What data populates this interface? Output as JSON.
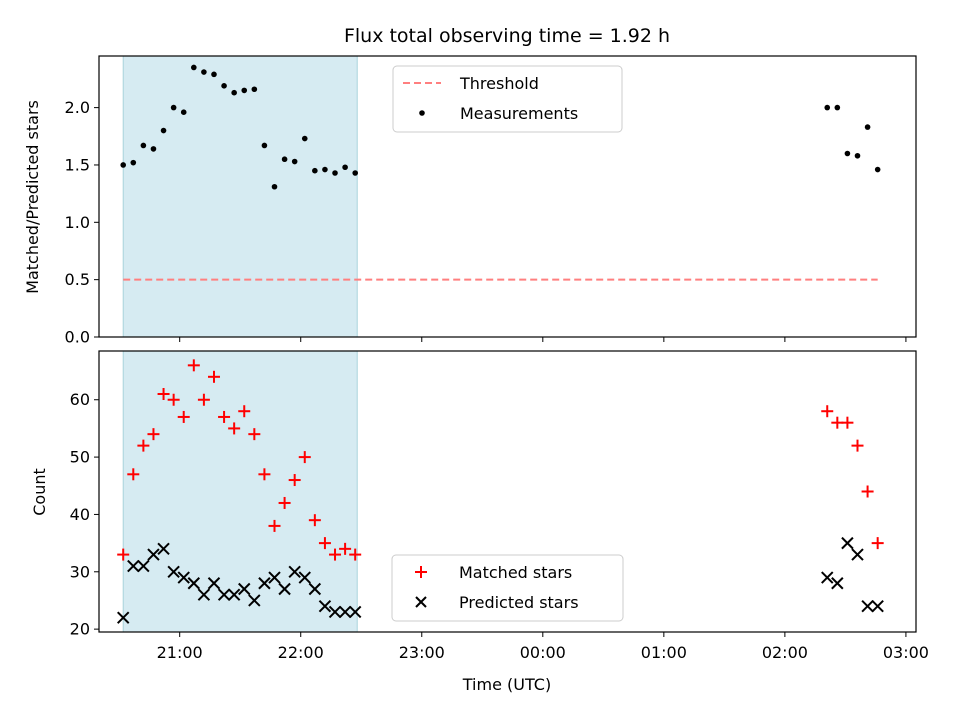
{
  "chart_data": [
    {
      "type": "scatter",
      "title": "Flux total observing time = 1.92 h",
      "xlabel": "",
      "ylabel": "Matched/Predicted stars",
      "ylim": [
        0,
        2.45
      ],
      "yticks": [
        0.0,
        0.5,
        1.0,
        1.5,
        2.0
      ],
      "ytick_labels": [
        "0.0",
        "0.5",
        "1.0",
        "1.5",
        "2.0"
      ],
      "xlim": [
        "20:20",
        "03:05"
      ],
      "shaded_interval": [
        "20:32",
        "22:28"
      ],
      "legend": {
        "position": "top-center",
        "entries": [
          {
            "label": "Threshold",
            "style": "dashed-line",
            "color": "#ff7f7f"
          },
          {
            "label": "Measurements",
            "style": "dot",
            "color": "#000000"
          }
        ]
      },
      "series": [
        {
          "name": "Threshold",
          "style": "dashed-line",
          "color": "#ff7f7f",
          "x": [
            "20:32",
            "02:46"
          ],
          "y": [
            0.5,
            0.5
          ]
        },
        {
          "name": "Measurements",
          "style": "dot",
          "color": "#000000",
          "x": [
            "20:32",
            "20:37",
            "20:42",
            "20:47",
            "20:52",
            "20:57",
            "21:02",
            "21:07",
            "21:12",
            "21:17",
            "21:22",
            "21:27",
            "21:32",
            "21:37",
            "21:42",
            "21:47",
            "21:52",
            "21:57",
            "22:02",
            "22:07",
            "22:12",
            "22:17",
            "22:22",
            "22:27",
            "02:21",
            "02:26",
            "02:31",
            "02:36",
            "02:41",
            "02:46"
          ],
          "y": [
            1.5,
            1.52,
            1.67,
            1.64,
            1.8,
            2.0,
            1.96,
            2.35,
            2.31,
            2.29,
            2.19,
            2.13,
            2.15,
            2.16,
            1.67,
            1.31,
            1.55,
            1.53,
            1.73,
            1.45,
            1.46,
            1.43,
            1.48,
            1.43,
            2.0,
            2.0,
            1.6,
            1.58,
            1.83,
            1.46
          ]
        }
      ]
    },
    {
      "type": "scatter",
      "title": "",
      "xlabel": "Time (UTC)",
      "ylabel": "Count",
      "ylim": [
        19.5,
        68.5
      ],
      "yticks": [
        20,
        30,
        40,
        50,
        60
      ],
      "ytick_labels": [
        "20",
        "30",
        "40",
        "50",
        "60"
      ],
      "xlim": [
        "20:20",
        "03:05"
      ],
      "xticks": [
        "21:00",
        "22:00",
        "23:00",
        "00:00",
        "01:00",
        "02:00",
        "03:00"
      ],
      "shaded_interval": [
        "20:32",
        "22:28"
      ],
      "legend": {
        "position": "bottom-center",
        "entries": [
          {
            "label": "Matched stars",
            "style": "plus",
            "color": "#ff0000"
          },
          {
            "label": "Predicted stars",
            "style": "x",
            "color": "#000000"
          }
        ]
      },
      "series": [
        {
          "name": "Matched stars",
          "style": "plus",
          "color": "#ff0000",
          "x": [
            "20:32",
            "20:37",
            "20:42",
            "20:47",
            "20:52",
            "20:57",
            "21:02",
            "21:07",
            "21:12",
            "21:17",
            "21:22",
            "21:27",
            "21:32",
            "21:37",
            "21:42",
            "21:47",
            "21:52",
            "21:57",
            "22:02",
            "22:07",
            "22:12",
            "22:17",
            "22:22",
            "22:27",
            "02:21",
            "02:26",
            "02:31",
            "02:36",
            "02:41",
            "02:46"
          ],
          "y": [
            33,
            47,
            52,
            54,
            61,
            60,
            57,
            66,
            60,
            64,
            57,
            55,
            58,
            54,
            47,
            38,
            42,
            46,
            50,
            39,
            35,
            33,
            34,
            33,
            58,
            56,
            56,
            52,
            44,
            35
          ]
        },
        {
          "name": "Predicted stars",
          "style": "x",
          "color": "#000000",
          "x": [
            "20:32",
            "20:37",
            "20:42",
            "20:47",
            "20:52",
            "20:57",
            "21:02",
            "21:07",
            "21:12",
            "21:17",
            "21:22",
            "21:27",
            "21:32",
            "21:37",
            "21:42",
            "21:47",
            "21:52",
            "21:57",
            "22:02",
            "22:07",
            "22:12",
            "22:17",
            "22:22",
            "22:27",
            "02:21",
            "02:26",
            "02:31",
            "02:36",
            "02:41",
            "02:46"
          ],
          "y": [
            22,
            31,
            31,
            33,
            34,
            30,
            29,
            28,
            26,
            28,
            26,
            26,
            27,
            25,
            28,
            29,
            27,
            30,
            29,
            27,
            24,
            23,
            23,
            23,
            29,
            28,
            35,
            33,
            24,
            24
          ]
        }
      ]
    }
  ]
}
